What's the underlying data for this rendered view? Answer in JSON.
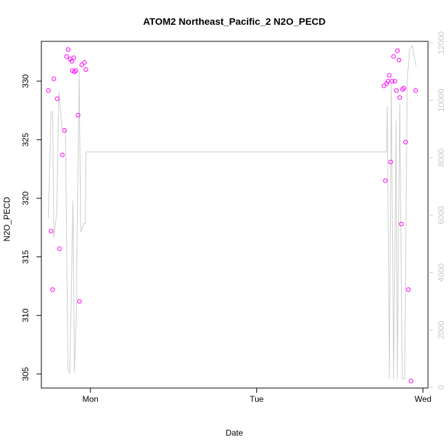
{
  "chart_data": {
    "type": "scatter",
    "title": "ATOM2 Northeast_Pacific_2 N2O_PECD",
    "xlabel": "Date",
    "ylabel": "N2O_PECD",
    "x_ticks": [
      "Mon",
      "Tue",
      "Wed"
    ],
    "y_ticks": [
      305,
      310,
      315,
      320,
      325,
      330
    ],
    "y_right_ticks": [
      0,
      2000,
      4000,
      6000,
      8000,
      10000,
      12000
    ],
    "xlim": [
      -0.295,
      2.03
    ],
    "ylim": [
      303.8,
      333.4
    ],
    "y_right_lim": [
      -20,
      12050
    ],
    "grid": false,
    "x_unit": "days since Monday 00:00",
    "series": [
      {
        "type": "scatter",
        "axis": "left",
        "color": "#ff00ff",
        "points": [
          {
            "x": -0.253,
            "y": 329.2
          },
          {
            "x": -0.237,
            "y": 317.2
          },
          {
            "x": -0.228,
            "y": 312.2
          },
          {
            "x": -0.22,
            "y": 330.2
          },
          {
            "x": -0.2,
            "y": 328.5
          },
          {
            "x": -0.186,
            "y": 315.7
          },
          {
            "x": -0.169,
            "y": 323.7
          },
          {
            "x": -0.156,
            "y": 325.8
          },
          {
            "x": -0.143,
            "y": 332.1
          },
          {
            "x": -0.134,
            "y": 332.7
          },
          {
            "x": -0.122,
            "y": 331.9
          },
          {
            "x": -0.112,
            "y": 331.7
          },
          {
            "x": -0.108,
            "y": 330.9
          },
          {
            "x": -0.1,
            "y": 332.0
          },
          {
            "x": -0.096,
            "y": 330.8
          },
          {
            "x": -0.087,
            "y": 330.9
          },
          {
            "x": -0.074,
            "y": 327.1
          },
          {
            "x": -0.066,
            "y": 311.2
          },
          {
            "x": -0.052,
            "y": 331.4
          },
          {
            "x": -0.036,
            "y": 331.6
          },
          {
            "x": -0.027,
            "y": 331.0
          },
          {
            "x": 1.765,
            "y": 329.6
          },
          {
            "x": 1.773,
            "y": 321.5
          },
          {
            "x": 1.781,
            "y": 329.8
          },
          {
            "x": 1.789,
            "y": 330.0
          },
          {
            "x": 1.797,
            "y": 330.5
          },
          {
            "x": 1.805,
            "y": 323.1
          },
          {
            "x": 1.814,
            "y": 330.0
          },
          {
            "x": 1.823,
            "y": 332.1
          },
          {
            "x": 1.831,
            "y": 330.0
          },
          {
            "x": 1.84,
            "y": 329.2
          },
          {
            "x": 1.846,
            "y": 332.6
          },
          {
            "x": 1.855,
            "y": 331.8
          },
          {
            "x": 1.86,
            "y": 328.6
          },
          {
            "x": 1.87,
            "y": 317.8
          },
          {
            "x": 1.877,
            "y": 329.3
          },
          {
            "x": 1.885,
            "y": 329.4
          },
          {
            "x": 1.895,
            "y": 324.8
          },
          {
            "x": 1.912,
            "y": 312.2
          },
          {
            "x": 1.928,
            "y": 304.4
          },
          {
            "x": 1.955,
            "y": 329.2
          }
        ]
      },
      {
        "type": "line",
        "axis": "right",
        "color": "#cccccc",
        "points": [
          {
            "x": -0.253,
            "y": 5900
          },
          {
            "x": -0.236,
            "y": 9600
          },
          {
            "x": -0.227,
            "y": 9600
          },
          {
            "x": -0.22,
            "y": 5200
          },
          {
            "x": -0.202,
            "y": 6100
          },
          {
            "x": -0.19,
            "y": 10300
          },
          {
            "x": -0.17,
            "y": 9000
          },
          {
            "x": -0.15,
            "y": 9000
          },
          {
            "x": -0.135,
            "y": 600
          },
          {
            "x": -0.124,
            "y": 500
          },
          {
            "x": -0.105,
            "y": 6500
          },
          {
            "x": -0.096,
            "y": 500
          },
          {
            "x": -0.085,
            "y": 2500
          },
          {
            "x": -0.068,
            "y": 11000
          },
          {
            "x": -0.058,
            "y": 5400
          },
          {
            "x": -0.04,
            "y": 5700
          },
          {
            "x": -0.03,
            "y": 5700
          },
          {
            "x": -0.027,
            "y": 8200
          },
          {
            "x": 1.78,
            "y": 8200
          },
          {
            "x": 1.785,
            "y": 9800
          },
          {
            "x": 1.798,
            "y": 300
          },
          {
            "x": 1.809,
            "y": 10600
          },
          {
            "x": 1.823,
            "y": 300
          },
          {
            "x": 1.838,
            "y": 9300
          },
          {
            "x": 1.845,
            "y": 300
          },
          {
            "x": 1.86,
            "y": 9900
          },
          {
            "x": 1.875,
            "y": 300
          },
          {
            "x": 1.89,
            "y": 300
          },
          {
            "x": 1.905,
            "y": 10700
          },
          {
            "x": 1.92,
            "y": 11800
          },
          {
            "x": 1.935,
            "y": 11900
          },
          {
            "x": 1.958,
            "y": 11200
          }
        ]
      }
    ]
  }
}
